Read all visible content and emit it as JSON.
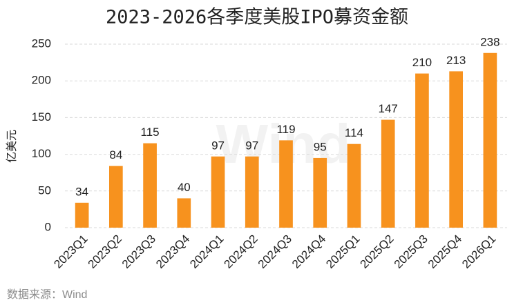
{
  "chart_data": {
    "type": "bar",
    "title": "2023-2026各季度美股IPO募资金额",
    "y_label": "亿美元",
    "categories": [
      "2023Q1",
      "2023Q2",
      "2023Q3",
      "2023Q4",
      "2024Q1",
      "2024Q2",
      "2024Q3",
      "2024Q4",
      "2025Q1",
      "2025Q2",
      "2025Q3",
      "2025Q4",
      "2026Q1"
    ],
    "values": [
      34,
      84,
      115,
      40,
      97,
      97,
      119,
      95,
      114,
      147,
      210,
      213,
      238
    ],
    "color": "#f7921e",
    "ylim": [
      0,
      250
    ],
    "yticks": [
      0,
      50,
      100,
      150,
      200,
      250
    ],
    "grid": true,
    "source": "数据来源：Wind",
    "watermark": "Wind"
  }
}
